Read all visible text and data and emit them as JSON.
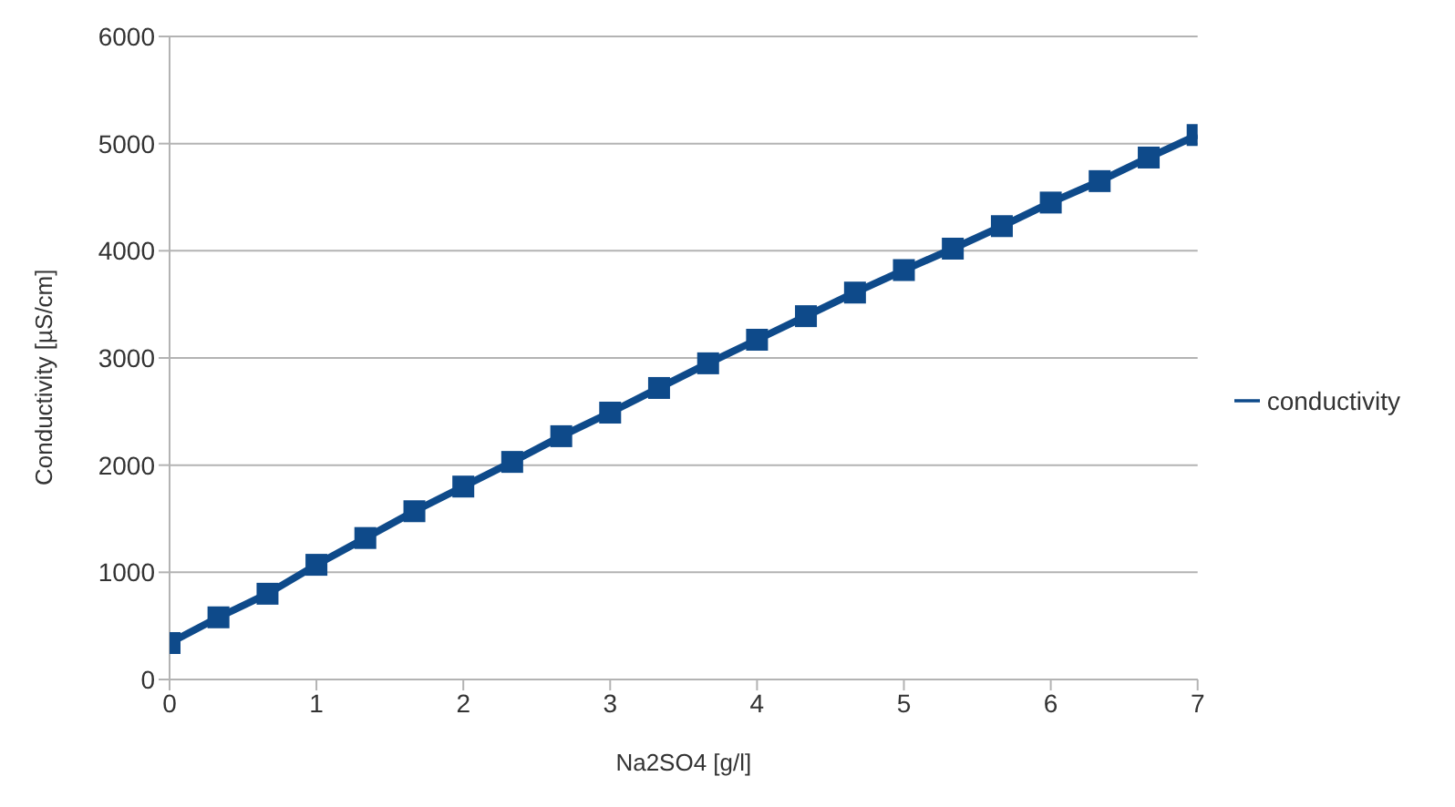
{
  "chart_data": {
    "type": "line",
    "xlabel": "Na2SO4 [g/l]",
    "ylabel": "Conductivity [µS/cm]",
    "x": [
      0,
      0.333,
      0.667,
      1,
      1.333,
      1.667,
      2,
      2.333,
      2.667,
      3,
      3.333,
      3.667,
      4,
      4.333,
      4.667,
      5,
      5.333,
      5.667,
      6,
      6.333,
      6.667,
      7
    ],
    "series": [
      {
        "name": "conductivity",
        "color": "#0e4a8a",
        "values": [
          340,
          580,
          800,
          1070,
          1320,
          1570,
          1800,
          2030,
          2270,
          2490,
          2720,
          2950,
          3170,
          3390,
          3610,
          3820,
          4020,
          4230,
          4450,
          4650,
          4870,
          5080
        ]
      }
    ],
    "xlim": [
      0,
      7
    ],
    "xticks": [
      0,
      1,
      2,
      3,
      4,
      5,
      6,
      7
    ],
    "ylim": [
      0,
      6000
    ],
    "yticks": [
      0,
      1000,
      2000,
      3000,
      4000,
      5000,
      6000
    ],
    "grid": "y",
    "legend": "right",
    "marker": "square",
    "line_style": "solid"
  }
}
